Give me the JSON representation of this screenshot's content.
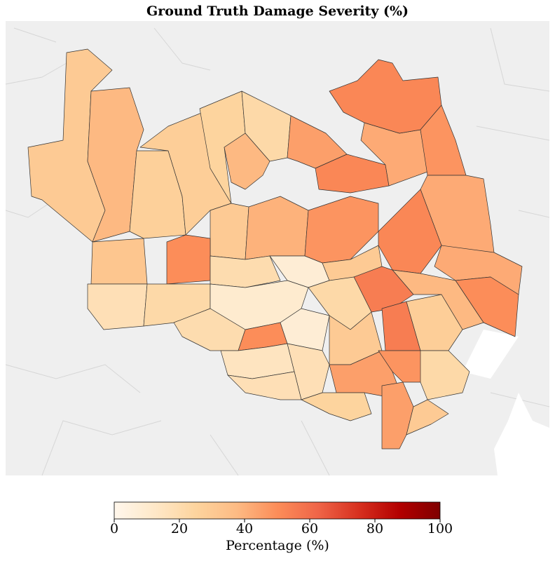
{
  "chart_data": {
    "type": "choropleth",
    "title": "Ground Truth Damage Severity (%)",
    "values": [
      30,
      38,
      27,
      32,
      18,
      28,
      25,
      22,
      38,
      45,
      52,
      42,
      52,
      48,
      42,
      52,
      42,
      50,
      38,
      30,
      40,
      48,
      50,
      20,
      8,
      30,
      55,
      55,
      28,
      22,
      10,
      22,
      20,
      50,
      8,
      30,
      15,
      18,
      45,
      48,
      22,
      18,
      25,
      45,
      30
    ],
    "colorbar": {
      "label": "Percentage (%)",
      "clim": [
        0,
        100
      ],
      "ticks": [
        0,
        20,
        40,
        60,
        80,
        100
      ],
      "colors": [
        "#fff7ec",
        "#fee8c8",
        "#fdd49e",
        "#fdbb84",
        "#fc8d59",
        "#ef6548",
        "#d7301f",
        "#b30000",
        "#7f0000"
      ]
    }
  }
}
